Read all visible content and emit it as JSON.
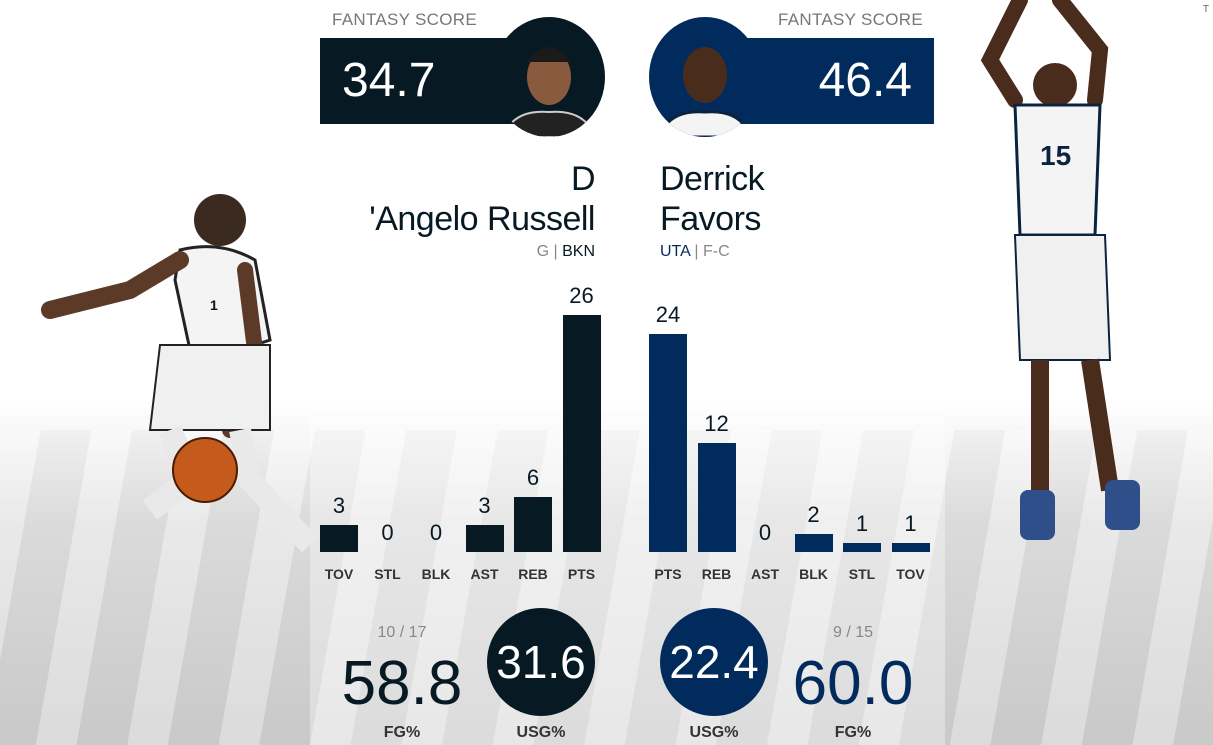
{
  "colors": {
    "left": "#071923",
    "right": "#002b5c"
  },
  "corner": "T",
  "left": {
    "fantasy_label": "FANTASY SCORE",
    "fantasy_score": "34.7",
    "name_line1": "D",
    "name_line2": "'Angelo Russell",
    "position": "G",
    "team": "BKN",
    "jersey": "1",
    "fg_made_att": "10 / 17",
    "fg_pct": "58.8",
    "fg_label": "FG%",
    "usg": "31.6",
    "usg_label": "USG%",
    "stats": [
      {
        "label": "TOV",
        "value": 3
      },
      {
        "label": "STL",
        "value": 0
      },
      {
        "label": "BLK",
        "value": 0
      },
      {
        "label": "AST",
        "value": 3
      },
      {
        "label": "REB",
        "value": 6
      },
      {
        "label": "PTS",
        "value": 26
      }
    ]
  },
  "right": {
    "fantasy_label": "FANTASY SCORE",
    "fantasy_score": "46.4",
    "name_line1": "Derrick",
    "name_line2": "Favors",
    "position": "F-C",
    "team": "UTA",
    "jersey": "15",
    "fg_made_att": "9 / 15",
    "fg_pct": "60.0",
    "fg_label": "FG%",
    "usg": "22.4",
    "usg_label": "USG%",
    "stats": [
      {
        "label": "PTS",
        "value": 24
      },
      {
        "label": "REB",
        "value": 12
      },
      {
        "label": "AST",
        "value": 0
      },
      {
        "label": "BLK",
        "value": 2
      },
      {
        "label": "STL",
        "value": 1
      },
      {
        "label": "TOV",
        "value": 1
      }
    ]
  }
}
